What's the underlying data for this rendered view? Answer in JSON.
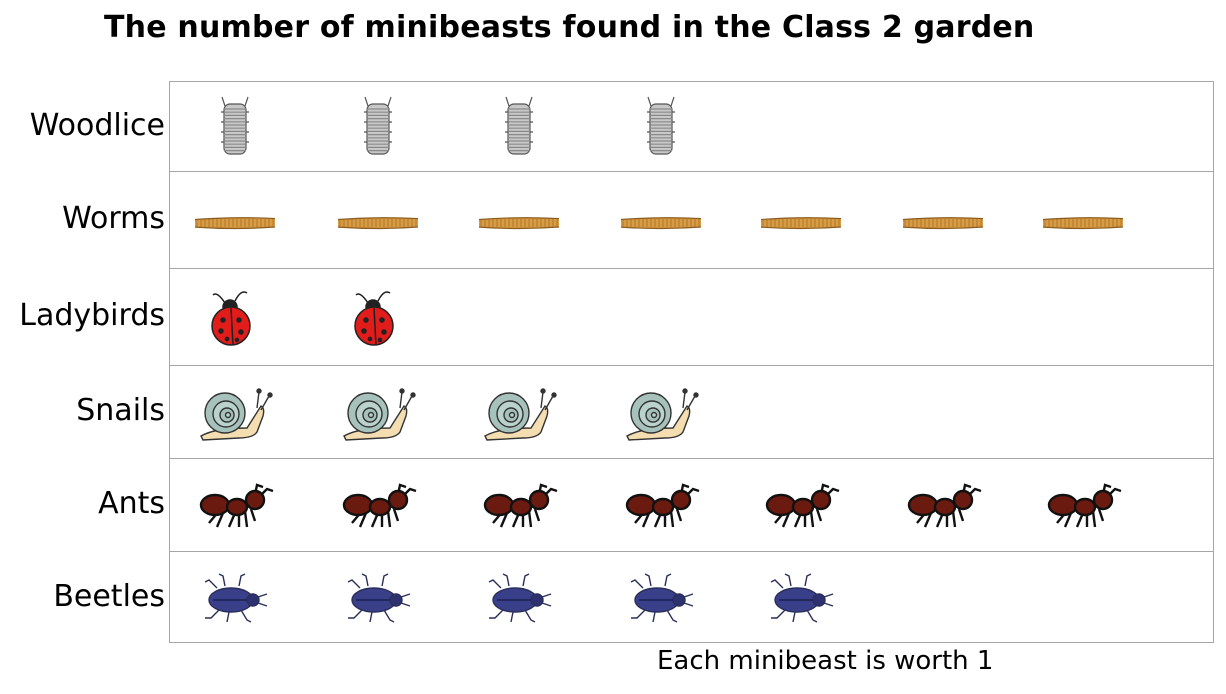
{
  "chart_data": {
    "type": "pictogram",
    "title": "The number of minibeasts found in the Class 2 garden",
    "categories": [
      "Woodlice",
      "Worms",
      "Ladybirds",
      "Snails",
      "Ants",
      "Beetles"
    ],
    "values": [
      4,
      7,
      2,
      4,
      7,
      5
    ],
    "icons": [
      "woodlouse-icon",
      "worm-icon",
      "ladybird-icon",
      "snail-icon",
      "ant-icon",
      "beetle-icon"
    ],
    "key": "Each minibeast is worth 1",
    "unit_value": 1,
    "grid": true
  }
}
